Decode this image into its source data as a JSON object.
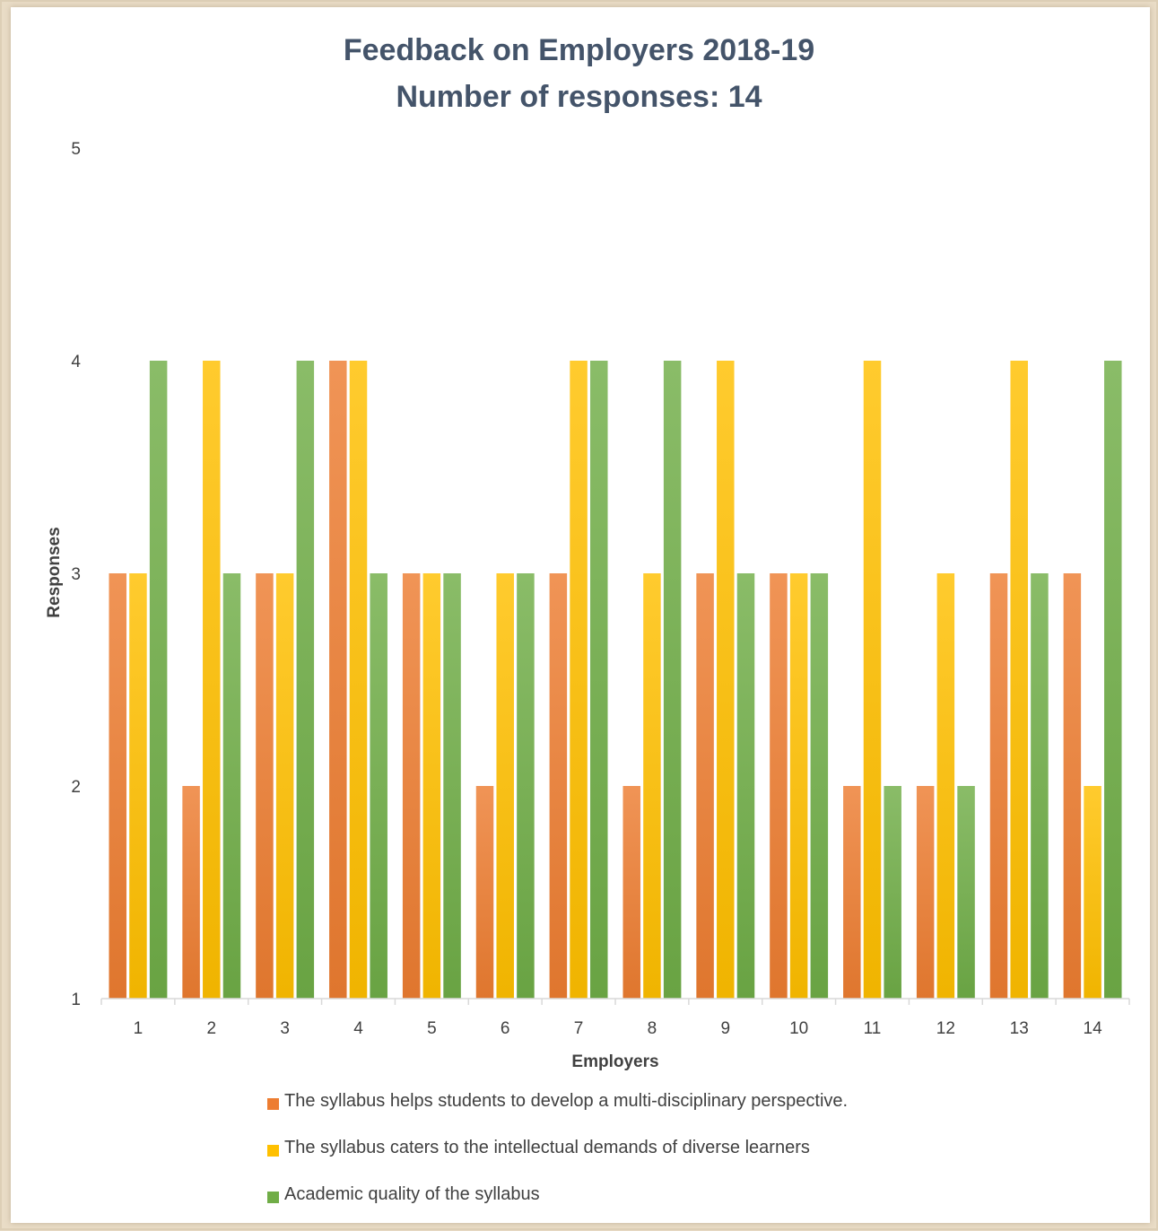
{
  "chart_data": {
    "type": "bar",
    "title": "Feedback on Employers 2018-19",
    "subtitle": "Number of responses: 14",
    "xlabel": "Employers",
    "ylabel": "Responses",
    "ylim": [
      1,
      5
    ],
    "y_ticks": [
      "1",
      "2",
      "3",
      "4",
      "5"
    ],
    "categories": [
      "1",
      "2",
      "3",
      "4",
      "5",
      "6",
      "7",
      "8",
      "9",
      "10",
      "11",
      "12",
      "13",
      "14"
    ],
    "series": [
      {
        "name": "The syllabus helps students to develop a multi-disciplinary perspective.",
        "color": "#ed7d31",
        "values": [
          3,
          2,
          3,
          4,
          3,
          2,
          3,
          2,
          3,
          3,
          2,
          2,
          3,
          3
        ]
      },
      {
        "name": "The syllabus caters to the intellectual demands of diverse learners",
        "color": "#ffc000",
        "values": [
          3,
          4,
          3,
          4,
          3,
          3,
          4,
          3,
          4,
          3,
          4,
          3,
          4,
          2
        ]
      },
      {
        "name": "Academic quality of the syllabus",
        "color": "#70ad47",
        "values": [
          4,
          3,
          4,
          3,
          3,
          3,
          4,
          4,
          3,
          3,
          2,
          2,
          3,
          4
        ]
      }
    ],
    "grid": false,
    "legend_position": "bottom"
  }
}
